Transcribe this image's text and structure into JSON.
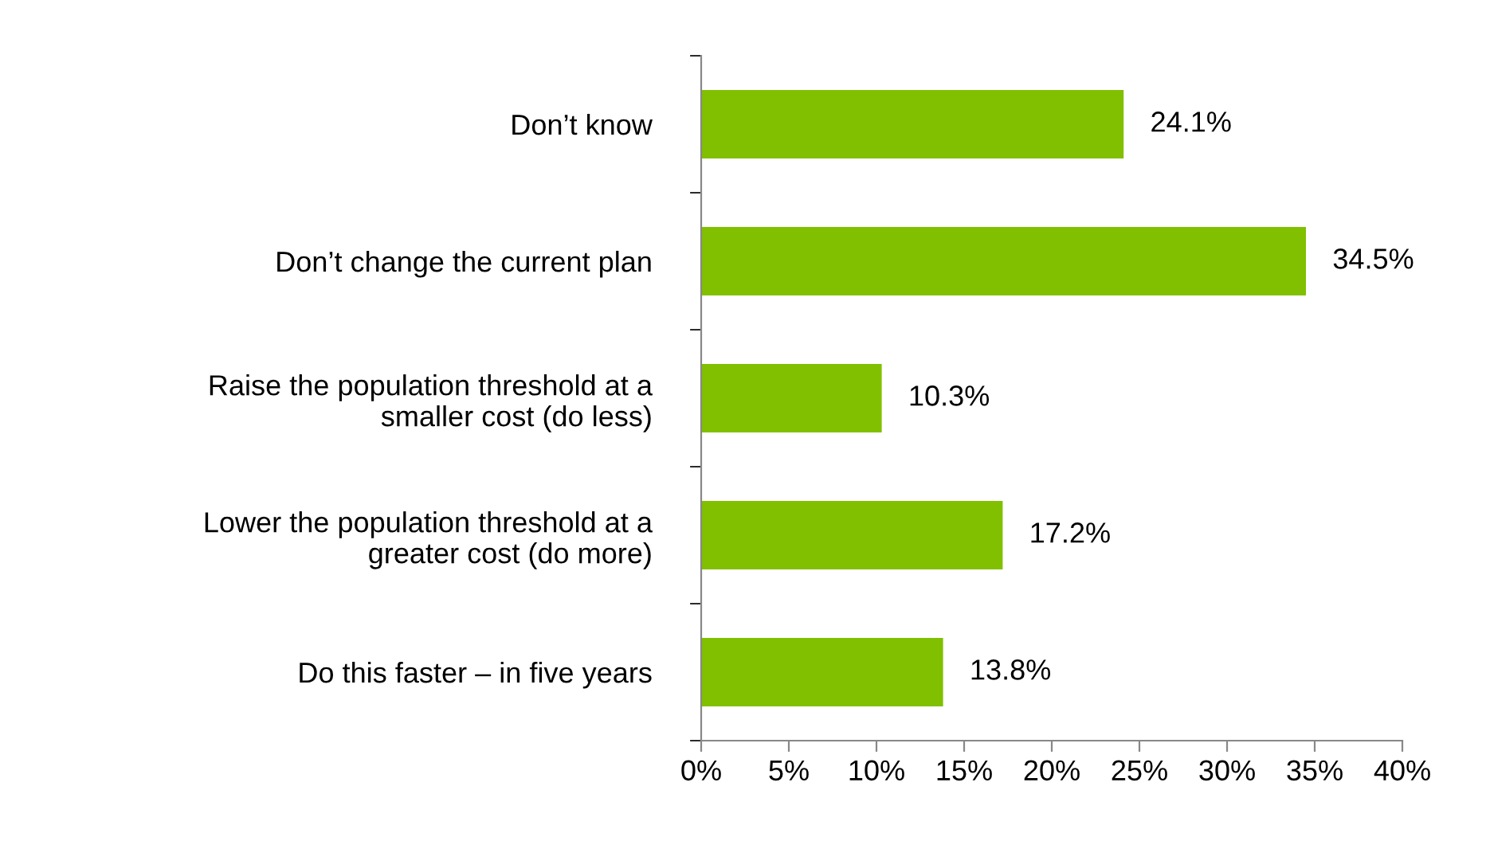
{
  "chart_data": {
    "type": "bar",
    "orientation": "horizontal",
    "categories": [
      "Don’t know",
      "Don’t change the current plan",
      "Raise the population threshold at a\nsmaller cost (do less)",
      "Lower the population threshold at a\ngreater cost (do more)",
      "Do this faster – in five years"
    ],
    "values": [
      24.1,
      34.5,
      10.3,
      17.2,
      13.8
    ],
    "value_labels": [
      "24.1%",
      "34.5%",
      "10.3%",
      "17.2%",
      "13.8%"
    ],
    "color": "#80c000",
    "xlim": [
      0,
      40
    ],
    "xticks": [
      {
        "value": 0,
        "label": "0%"
      },
      {
        "value": 5,
        "label": "5%"
      },
      {
        "value": 10,
        "label": "10%"
      },
      {
        "value": 15,
        "label": "15%"
      },
      {
        "value": 20,
        "label": "20%"
      },
      {
        "value": 25,
        "label": "25%"
      },
      {
        "value": 30,
        "label": "30%"
      },
      {
        "value": 35,
        "label": "35%"
      },
      {
        "value": 40,
        "label": "40%"
      }
    ],
    "grid": false,
    "legend": false
  }
}
